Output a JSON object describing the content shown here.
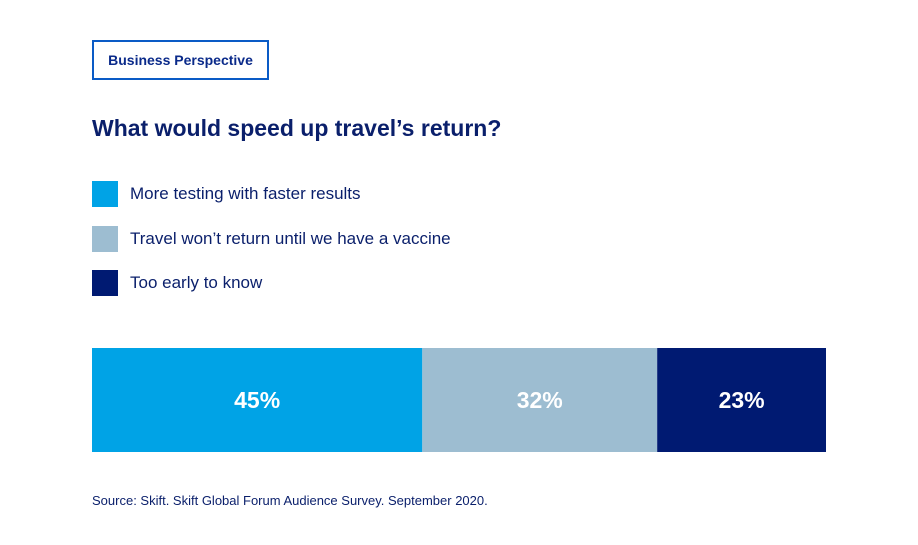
{
  "header": {
    "tag": "Business Perspective"
  },
  "chart_data": {
    "type": "bar",
    "orientation": "horizontal-stacked",
    "title": "What would speed up travel’s return?",
    "series": [
      {
        "name": "More testing with faster results",
        "value": 45,
        "label": "45%",
        "color": "#00a3e6"
      },
      {
        "name": "Travel won’t return until we have a vaccine",
        "value": 32,
        "label": "32%",
        "color": "#9dbdd1"
      },
      {
        "name": "Too early to know",
        "value": 23,
        "label": "23%",
        "color": "#001a72"
      }
    ],
    "unit": "%",
    "total": 100,
    "legend_position": "top-left",
    "grid": false
  },
  "footer": {
    "source": "Source: Skift. Skift Global Forum Audience Survey. September 2020."
  }
}
